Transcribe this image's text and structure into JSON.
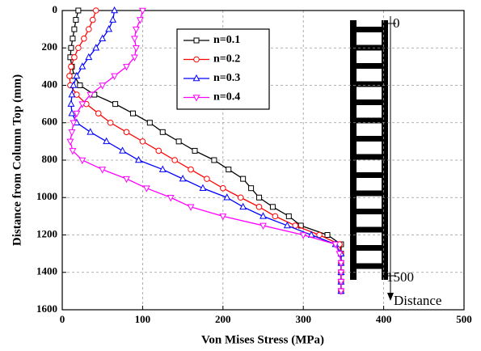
{
  "chart_data": {
    "type": "line",
    "x_label": "Von Mises Stress (MPa)",
    "y_label": "Distance from Column Top (mm)",
    "xlim": [
      0,
      500
    ],
    "xticks": [
      0,
      100,
      200,
      300,
      400,
      500
    ],
    "ylim": [
      0,
      1600
    ],
    "yticks": [
      0,
      200,
      400,
      600,
      800,
      1000,
      1200,
      1400,
      1600
    ],
    "y_inverted": true,
    "grid": true,
    "legend": "upper-center",
    "annotations": [
      "0",
      "1500",
      "Distance"
    ],
    "series": [
      {
        "name": "n=0.1",
        "color": "#000000",
        "marker": "square",
        "x": [
          20,
          17,
          15,
          13,
          11,
          10,
          12,
          15,
          22,
          40,
          66,
          88,
          109,
          125,
          145,
          165,
          189,
          207,
          225,
          235,
          245,
          262,
          282,
          297,
          330,
          347,
          347,
          347,
          347,
          347,
          347
        ],
        "values": [
          0,
          50,
          100,
          150,
          200,
          250,
          300,
          350,
          400,
          450,
          500,
          550,
          600,
          650,
          700,
          750,
          800,
          850,
          900,
          950,
          1000,
          1050,
          1100,
          1150,
          1200,
          1250,
          1300,
          1350,
          1400,
          1450,
          1500
        ]
      },
      {
        "name": "n=0.2",
        "color": "#ff0000",
        "marker": "circle",
        "x": [
          42,
          38,
          33,
          27,
          20,
          15,
          11,
          9,
          10,
          18,
          30,
          45,
          60,
          80,
          100,
          120,
          140,
          160,
          180,
          200,
          222,
          245,
          265,
          290,
          320,
          345,
          347,
          347,
          347,
          347,
          347
        ],
        "values": [
          0,
          50,
          100,
          150,
          200,
          250,
          300,
          350,
          400,
          450,
          500,
          550,
          600,
          650,
          700,
          750,
          800,
          850,
          900,
          950,
          1000,
          1050,
          1100,
          1150,
          1200,
          1250,
          1300,
          1350,
          1400,
          1450,
          1500
        ]
      },
      {
        "name": "n=0.3",
        "color": "#0000ff",
        "marker": "triangle-up",
        "x": [
          65,
          63,
          58,
          50,
          42,
          33,
          25,
          18,
          14,
          12,
          11,
          12,
          18,
          35,
          55,
          75,
          95,
          125,
          150,
          175,
          205,
          225,
          250,
          280,
          310,
          340,
          347,
          347,
          347,
          347,
          347
        ],
        "values": [
          0,
          50,
          100,
          150,
          200,
          250,
          300,
          350,
          400,
          450,
          500,
          550,
          600,
          650,
          700,
          750,
          800,
          850,
          900,
          950,
          1000,
          1050,
          1100,
          1150,
          1200,
          1250,
          1300,
          1350,
          1400,
          1450,
          1500
        ]
      },
      {
        "name": "n=0.4",
        "color": "#ff00ff",
        "marker": "triangle-down",
        "x": [
          100,
          97,
          92,
          90,
          92,
          90,
          80,
          65,
          50,
          35,
          25,
          18,
          14,
          12,
          10,
          13,
          25,
          50,
          80,
          105,
          135,
          160,
          200,
          250,
          300,
          340,
          345,
          347,
          347,
          347,
          347
        ],
        "values": [
          0,
          50,
          100,
          150,
          200,
          250,
          300,
          350,
          400,
          450,
          500,
          550,
          600,
          650,
          700,
          750,
          800,
          850,
          900,
          950,
          1000,
          1050,
          1100,
          1150,
          1200,
          1250,
          1300,
          1350,
          1400,
          1450,
          1500
        ]
      }
    ]
  }
}
